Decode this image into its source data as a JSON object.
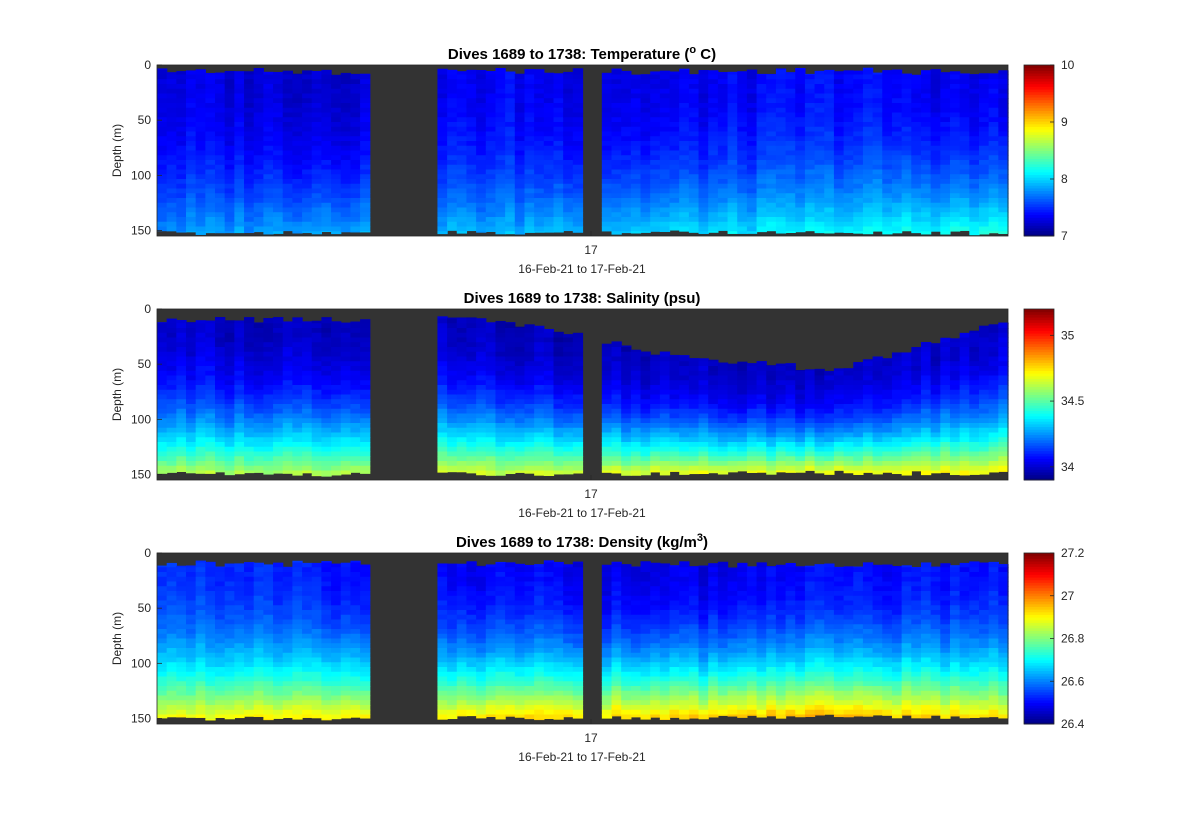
{
  "chart_data": [
    {
      "type": "heatmap",
      "title": "Dives 1689 to 1738: Temperature (",
      "title_sup": "o",
      "title_suffix": " C)",
      "ylabel": "Depth (m)",
      "xlabel": "16-Feb-21 to 17-Feb-21",
      "x_ticks": [
        "17"
      ],
      "y_ticks": [
        0,
        50,
        100,
        150
      ],
      "ylim": [
        0,
        155
      ],
      "y_reversed": true,
      "colormap": "jet",
      "clim": [
        7,
        10
      ],
      "colorbar_ticks": [
        7,
        8,
        9,
        10
      ],
      "no_data_color": "#333333",
      "surface_values": [
        7.3,
        7.25,
        7.35,
        7.3,
        7.4,
        7.3
      ],
      "bottom_values": [
        7.8,
        7.9,
        7.9,
        8.0,
        8.1,
        8.2
      ],
      "cast_surface_depth": [
        4,
        5,
        4,
        5,
        4,
        6
      ],
      "cast_bottom_depth": [
        152,
        151,
        152,
        151,
        151,
        152
      ]
    },
    {
      "type": "heatmap",
      "title": "Dives 1689 to 1738: Salinity (psu)",
      "ylabel": "Depth (m)",
      "xlabel": "16-Feb-21 to 17-Feb-21",
      "x_ticks": [
        "17"
      ],
      "y_ticks": [
        0,
        50,
        100,
        150
      ],
      "ylim": [
        0,
        155
      ],
      "y_reversed": true,
      "colormap": "jet",
      "clim": [
        33.9,
        35.2
      ],
      "colorbar_ticks": [
        34,
        34.5,
        35
      ],
      "no_data_color": "#333333",
      "surface_values": [
        34.0,
        33.98,
        33.97,
        33.98,
        33.99,
        34.0
      ],
      "bottom_values": [
        34.6,
        34.62,
        34.65,
        34.68,
        34.7,
        34.72
      ],
      "cast_surface_depth": [
        8,
        9,
        8,
        40,
        55,
        10
      ],
      "cast_bottom_depth": [
        149,
        150,
        149,
        149,
        148,
        149
      ]
    },
    {
      "type": "heatmap",
      "title": "Dives 1689 to 1738: Density (kg/m",
      "title_sup": "3",
      "title_suffix": ")",
      "ylabel": "Depth (m)",
      "xlabel": "16-Feb-21 to 17-Feb-21",
      "x_ticks": [
        "17"
      ],
      "y_ticks": [
        0,
        50,
        100,
        150
      ],
      "ylim": [
        0,
        155
      ],
      "y_reversed": true,
      "colormap": "jet",
      "clim": [
        26.4,
        27.2
      ],
      "colorbar_ticks": [
        26.4,
        26.6,
        26.8,
        27,
        27.2
      ],
      "no_data_color": "#333333",
      "surface_values": [
        26.55,
        26.52,
        26.5,
        26.48,
        26.5,
        26.52
      ],
      "bottom_values": [
        26.9,
        26.92,
        26.93,
        26.94,
        26.95,
        26.93
      ],
      "cast_surface_depth": [
        8,
        9,
        8,
        9,
        10,
        9
      ],
      "cast_bottom_depth": [
        149,
        150,
        149,
        149,
        148,
        149
      ]
    }
  ]
}
